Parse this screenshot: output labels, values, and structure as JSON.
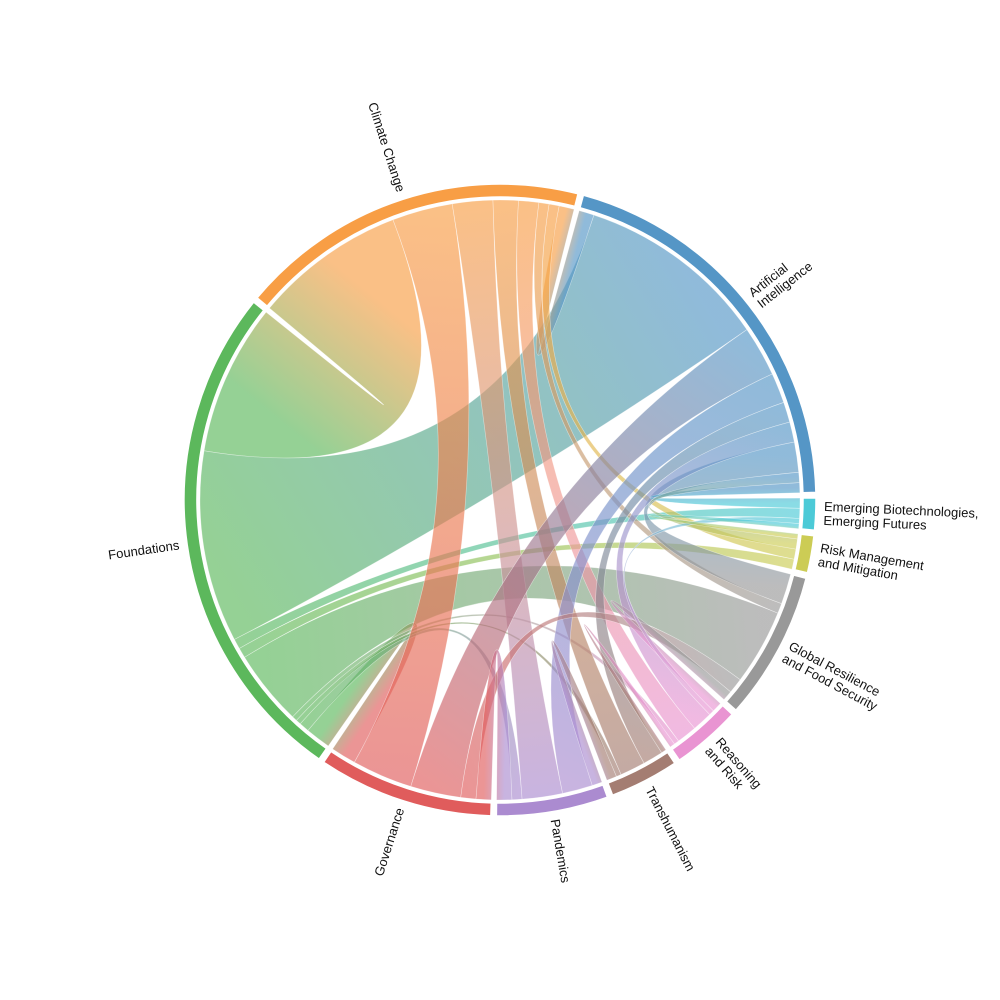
{
  "chart_data": {
    "type": "chord",
    "groups": [
      {
        "name": [
          "Artificial",
          "Intelligence"
        ],
        "color": "#5596c6"
      },
      {
        "name": [
          "Emerging Biotechnologies,",
          "Emerging Futures"
        ],
        "color": "#4ccad7"
      },
      {
        "name": [
          "Risk Management",
          "and Mitigation"
        ],
        "color": "#cccc55"
      },
      {
        "name": [
          "Global Resilience",
          "and Food Security"
        ],
        "color": "#999999"
      },
      {
        "name": [
          "Reasoning",
          "and Risk"
        ],
        "color": "#e994d2"
      },
      {
        "name": [
          "Transhumanism"
        ],
        "color": "#a47d72"
      },
      {
        "name": [
          "Pandemics"
        ],
        "color": "#ab8bd0"
      },
      {
        "name": [
          "Governance"
        ],
        "color": "#e05c5c"
      },
      {
        "name": [
          "Foundations"
        ],
        "color": "#5cb85c"
      },
      {
        "name": [
          "Climate Change"
        ],
        "color": "#f89e45"
      }
    ],
    "links": [
      {
        "source": 8,
        "target": 9,
        "value": 30
      },
      {
        "source": 8,
        "target": 0,
        "value": 38
      },
      {
        "source": 8,
        "target": 3,
        "value": 15
      },
      {
        "source": 8,
        "target": 7,
        "value": 5
      },
      {
        "source": 8,
        "target": 1,
        "value": 2
      },
      {
        "source": 8,
        "target": 2,
        "value": 2
      },
      {
        "source": 8,
        "target": 6,
        "value": 2
      },
      {
        "source": 8,
        "target": 5,
        "value": 1
      },
      {
        "source": 8,
        "target": 4,
        "value": 1
      },
      {
        "source": 9,
        "target": 7,
        "value": 12
      },
      {
        "source": 9,
        "target": 6,
        "value": 8
      },
      {
        "source": 9,
        "target": 5,
        "value": 5
      },
      {
        "source": 9,
        "target": 4,
        "value": 4
      },
      {
        "source": 9,
        "target": 0,
        "value": 3
      },
      {
        "source": 9,
        "target": 2,
        "value": 2
      },
      {
        "source": 9,
        "target": 3,
        "value": 2
      },
      {
        "source": 0,
        "target": 7,
        "value": 10
      },
      {
        "source": 0,
        "target": 6,
        "value": 6
      },
      {
        "source": 0,
        "target": 3,
        "value": 6
      },
      {
        "source": 0,
        "target": 5,
        "value": 4
      },
      {
        "source": 0,
        "target": 4,
        "value": 4
      },
      {
        "source": 0,
        "target": 1,
        "value": 2
      },
      {
        "source": 0,
        "target": 2,
        "value": 2
      },
      {
        "source": 3,
        "target": 7,
        "value": 3
      },
      {
        "source": 3,
        "target": 4,
        "value": 2
      },
      {
        "source": 7,
        "target": 6,
        "value": 3
      },
      {
        "source": 6,
        "target": 5,
        "value": 2
      },
      {
        "source": 5,
        "target": 4,
        "value": 1
      },
      {
        "source": 4,
        "target": 1,
        "value": 1
      },
      {
        "source": 1,
        "target": 2,
        "value": 1
      }
    ]
  }
}
